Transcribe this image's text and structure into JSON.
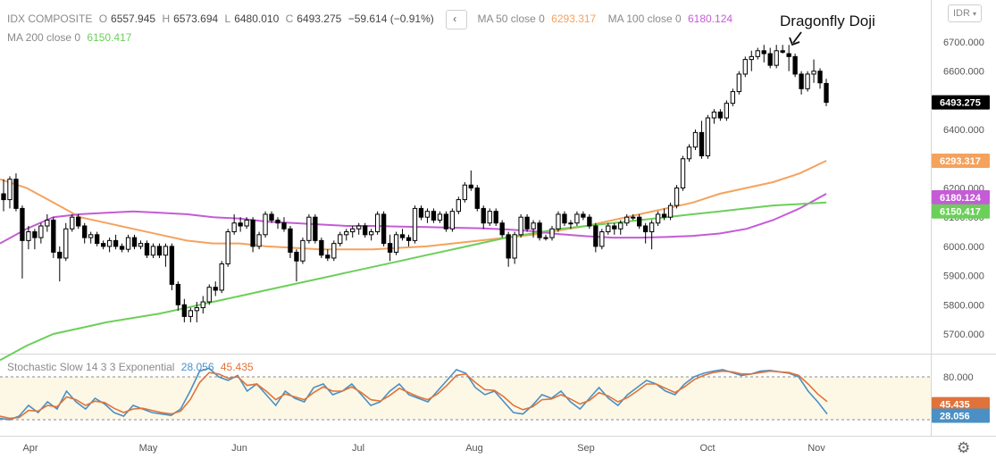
{
  "symbol": "IDX COMPOSITE",
  "ohlc": {
    "open_label": "O",
    "open": "6557.945",
    "high_label": "H",
    "high": "6573.694",
    "low_label": "L",
    "low": "6480.010",
    "close_label": "C",
    "close": "6493.275",
    "change": "−59.614 (−0.91%)"
  },
  "collapse_icon": "‹",
  "currency": "IDR",
  "currency_icon": "chevron-down-icon",
  "settings_icon": "⚙",
  "annotation": {
    "text": "Dragonfly Doji",
    "arrow_icon": "arrow-down-left-icon"
  },
  "moving_averages": [
    {
      "label": "MA 50 close 0",
      "value": "6293.317",
      "color": "#f5a25d"
    },
    {
      "label": "MA 100 close 0",
      "value": "6180.124",
      "color": "#c45cd6"
    },
    {
      "label": "MA 200 close 0",
      "value": "6150.417",
      "color": "#6ccf5a"
    }
  ],
  "stochastic": {
    "label": "Stochastic Slow 14 3 3 Exponential",
    "k": "28.056",
    "d": "45.435",
    "k_color": "#4a90c4",
    "d_color": "#e0733a",
    "band_upper": "80.000",
    "band_lower": "20.000"
  },
  "last_price_badge": {
    "value": "6493.275",
    "color": "#000000"
  },
  "chart_data": {
    "type": "candlestick",
    "y_axis_ticks": [
      "5700.000",
      "5800.000",
      "5900.000",
      "6000.000",
      "6100.000",
      "6200.000",
      "6300.000",
      "6400.000",
      "6500.000",
      "6600.000",
      "6700.000"
    ],
    "ylim": [
      5650,
      6760
    ],
    "x_axis_ticks": [
      "Apr",
      "May",
      "Jun",
      "Jul",
      "Aug",
      "Sep",
      "Oct",
      "Nov"
    ],
    "x_dates": [
      "2019-04-01",
      "2019-05-01",
      "2019-06-01",
      "2019-07-01",
      "2019-08-01",
      "2019-09-01",
      "2019-10-01",
      "2019-11-01"
    ],
    "candles": [
      [
        6180,
        6230,
        6120,
        6160
      ],
      [
        6160,
        6240,
        6130,
        6230
      ],
      [
        6230,
        6250,
        6120,
        6130
      ],
      [
        6130,
        6140,
        5890,
        6020
      ],
      [
        6020,
        6070,
        5990,
        6050
      ],
      [
        6050,
        6060,
        5990,
        6030
      ],
      [
        6030,
        6080,
        6010,
        6070
      ],
      [
        6070,
        6110,
        6050,
        6090
      ],
      [
        6090,
        6100,
        5960,
        5980
      ],
      [
        5980,
        6000,
        5880,
        5960
      ],
      [
        5960,
        6080,
        5950,
        6060
      ],
      [
        6060,
        6110,
        6050,
        6100
      ],
      [
        6100,
        6110,
        6060,
        6070
      ],
      [
        6070,
        6080,
        6010,
        6030
      ],
      [
        6030,
        6050,
        6010,
        6040
      ],
      [
        6040,
        6050,
        6000,
        6010
      ],
      [
        6010,
        6020,
        5990,
        6000
      ],
      [
        6000,
        6030,
        5980,
        6020
      ],
      [
        6020,
        6040,
        5990,
        6000
      ],
      [
        6000,
        6010,
        5980,
        5990
      ],
      [
        5990,
        6040,
        5980,
        6030
      ],
      [
        6030,
        6040,
        5990,
        6000
      ],
      [
        6000,
        6020,
        5990,
        6010
      ],
      [
        6010,
        6020,
        5960,
        5970
      ],
      [
        5970,
        6010,
        5960,
        6000
      ],
      [
        6000,
        6010,
        5960,
        5970
      ],
      [
        5970,
        6010,
        5930,
        6000
      ],
      [
        6000,
        6010,
        5850,
        5870
      ],
      [
        5870,
        5880,
        5780,
        5800
      ],
      [
        5800,
        5820,
        5740,
        5760
      ],
      [
        5760,
        5790,
        5740,
        5780
      ],
      [
        5780,
        5810,
        5740,
        5790
      ],
      [
        5790,
        5830,
        5770,
        5810
      ],
      [
        5810,
        5870,
        5800,
        5860
      ],
      [
        5860,
        5880,
        5830,
        5850
      ],
      [
        5850,
        5950,
        5840,
        5940
      ],
      [
        5940,
        6060,
        5930,
        6050
      ],
      [
        6050,
        6110,
        6040,
        6080
      ],
      [
        6080,
        6100,
        6050,
        6070
      ],
      [
        6070,
        6100,
        6060,
        6090
      ],
      [
        6090,
        6100,
        5980,
        6000
      ],
      [
        6000,
        6050,
        5990,
        6040
      ],
      [
        6040,
        6120,
        6030,
        6110
      ],
      [
        6110,
        6120,
        6080,
        6090
      ],
      [
        6090,
        6100,
        6060,
        6080
      ],
      [
        6080,
        6100,
        6050,
        6060
      ],
      [
        6060,
        6070,
        5960,
        5980
      ],
      [
        5980,
        5990,
        5880,
        5950
      ],
      [
        5950,
        6030,
        5940,
        6020
      ],
      [
        6020,
        6110,
        6010,
        6100
      ],
      [
        6100,
        6110,
        6010,
        6020
      ],
      [
        6020,
        6030,
        5960,
        5970
      ],
      [
        5970,
        5990,
        5950,
        5960
      ],
      [
        5960,
        6020,
        5950,
        6010
      ],
      [
        6010,
        6050,
        6000,
        6040
      ],
      [
        6040,
        6060,
        6020,
        6050
      ],
      [
        6050,
        6070,
        6030,
        6060
      ],
      [
        6060,
        6080,
        6040,
        6070
      ],
      [
        6070,
        6080,
        6030,
        6040
      ],
      [
        6040,
        6060,
        6020,
        6050
      ],
      [
        6050,
        6120,
        6040,
        6110
      ],
      [
        6110,
        6120,
        6000,
        6010
      ],
      [
        6010,
        6040,
        5950,
        5980
      ],
      [
        5980,
        6050,
        5970,
        6040
      ],
      [
        6040,
        6060,
        6020,
        6030
      ],
      [
        6030,
        6040,
        6000,
        6020
      ],
      [
        6020,
        6140,
        6010,
        6130
      ],
      [
        6130,
        6140,
        6090,
        6100
      ],
      [
        6100,
        6130,
        6080,
        6120
      ],
      [
        6120,
        6130,
        6080,
        6090
      ],
      [
        6090,
        6120,
        6080,
        6110
      ],
      [
        6110,
        6120,
        6050,
        6060
      ],
      [
        6060,
        6130,
        6050,
        6120
      ],
      [
        6120,
        6170,
        6110,
        6160
      ],
      [
        6160,
        6220,
        6150,
        6210
      ],
      [
        6210,
        6260,
        6190,
        6200
      ],
      [
        6200,
        6210,
        6120,
        6130
      ],
      [
        6130,
        6140,
        6060,
        6080
      ],
      [
        6080,
        6130,
        6070,
        6120
      ],
      [
        6120,
        6130,
        6070,
        6080
      ],
      [
        6080,
        6090,
        6030,
        6040
      ],
      [
        6040,
        6050,
        5930,
        5960
      ],
      [
        5960,
        6050,
        5940,
        6040
      ],
      [
        6040,
        6110,
        6030,
        6100
      ],
      [
        6100,
        6110,
        6050,
        6060
      ],
      [
        6060,
        6090,
        6030,
        6080
      ],
      [
        6080,
        6090,
        6020,
        6030
      ],
      [
        6030,
        6040,
        6020,
        6030
      ],
      [
        6030,
        6070,
        6020,
        6060
      ],
      [
        6060,
        6120,
        6050,
        6110
      ],
      [
        6110,
        6120,
        6070,
        6080
      ],
      [
        6080,
        6090,
        6060,
        6080
      ],
      [
        6080,
        6120,
        6070,
        6110
      ],
      [
        6110,
        6120,
        6090,
        6100
      ],
      [
        6100,
        6110,
        6060,
        6070
      ],
      [
        6070,
        6080,
        5980,
        6000
      ],
      [
        6000,
        6060,
        5990,
        6050
      ],
      [
        6050,
        6080,
        6040,
        6070
      ],
      [
        6070,
        6080,
        6040,
        6060
      ],
      [
        6060,
        6090,
        6040,
        6080
      ],
      [
        6080,
        6110,
        6070,
        6100
      ],
      [
        6100,
        6110,
        6090,
        6100
      ],
      [
        6100,
        6110,
        6060,
        6070
      ],
      [
        6070,
        6080,
        6010,
        6050
      ],
      [
        6050,
        6090,
        5990,
        6080
      ],
      [
        6080,
        6120,
        6070,
        6110
      ],
      [
        6110,
        6130,
        6090,
        6100
      ],
      [
        6100,
        6150,
        6090,
        6140
      ],
      [
        6140,
        6210,
        6130,
        6200
      ],
      [
        6200,
        6310,
        6190,
        6300
      ],
      [
        6300,
        6350,
        6290,
        6340
      ],
      [
        6340,
        6400,
        6330,
        6390
      ],
      [
        6390,
        6430,
        6300,
        6310
      ],
      [
        6310,
        6450,
        6300,
        6440
      ],
      [
        6440,
        6470,
        6420,
        6460
      ],
      [
        6460,
        6470,
        6430,
        6440
      ],
      [
        6440,
        6500,
        6430,
        6490
      ],
      [
        6490,
        6540,
        6480,
        6530
      ],
      [
        6530,
        6600,
        6520,
        6590
      ],
      [
        6590,
        6650,
        6580,
        6640
      ],
      [
        6640,
        6670,
        6600,
        6650
      ],
      [
        6650,
        6680,
        6640,
        6670
      ],
      [
        6670,
        6690,
        6630,
        6660
      ],
      [
        6660,
        6680,
        6610,
        6620
      ],
      [
        6620,
        6690,
        6610,
        6670
      ],
      [
        6670,
        6690,
        6660,
        6665
      ],
      [
        6660,
        6690,
        6600,
        6650
      ],
      [
        6650,
        6660,
        6580,
        6590
      ],
      [
        6590,
        6600,
        6520,
        6540
      ],
      [
        6540,
        6600,
        6530,
        6590
      ],
      [
        6590,
        6640,
        6560,
        6600
      ],
      [
        6600,
        6610,
        6540,
        6560
      ],
      [
        6557.945,
        6573.694,
        6480.01,
        6493.275
      ]
    ],
    "ma_series": [
      {
        "name": "MA 50 close 0",
        "values": [
          6230,
          6200,
          6150,
          6100,
          6080,
          6060,
          6040,
          6020,
          6010,
          6010,
          6000,
          5995,
          5990,
          5990,
          5990,
          5995,
          6000,
          6010,
          6020,
          6030,
          6040,
          6055,
          6070,
          6090,
          6110,
          6130,
          6150,
          6180,
          6200,
          6220,
          6250,
          6293.317
        ]
      },
      {
        "name": "MA 100 close 0",
        "values": [
          6010,
          6060,
          6100,
          6110,
          6115,
          6120,
          6115,
          6110,
          6100,
          6095,
          6085,
          6080,
          6075,
          6070,
          6070,
          6068,
          6066,
          6064,
          6062,
          6058,
          6052,
          6042,
          6035,
          6030,
          6030,
          6032,
          6036,
          6044,
          6060,
          6090,
          6130,
          6180.124
        ]
      },
      {
        "name": "MA 200 close 0",
        "values": [
          5610,
          5660,
          5700,
          5720,
          5740,
          5755,
          5770,
          5790,
          5810,
          5830,
          5850,
          5870,
          5890,
          5910,
          5930,
          5950,
          5970,
          5990,
          6010,
          6030,
          6045,
          6060,
          6070,
          6080,
          6090,
          6100,
          6110,
          6120,
          6130,
          6140,
          6145,
          6150.417
        ]
      }
    ],
    "stochastic_series": [
      {
        "name": "K",
        "values": [
          22,
          20,
          25,
          40,
          30,
          45,
          35,
          60,
          45,
          35,
          50,
          42,
          30,
          25,
          40,
          35,
          30,
          28,
          26,
          35,
          60,
          88,
          92,
          80,
          75,
          82,
          60,
          70,
          55,
          40,
          60,
          50,
          45,
          65,
          70,
          55,
          60,
          70,
          55,
          40,
          45,
          60,
          70,
          55,
          50,
          45,
          60,
          75,
          90,
          85,
          65,
          55,
          60,
          45,
          30,
          28,
          40,
          55,
          50,
          60,
          45,
          35,
          50,
          65,
          50,
          40,
          55,
          65,
          75,
          70,
          60,
          55,
          70,
          80,
          85,
          88,
          90,
          86,
          82,
          84,
          88,
          89,
          87,
          85,
          80,
          60,
          45,
          28.056
        ]
      },
      {
        "name": "D",
        "values": [
          25,
          22,
          23,
          33,
          32,
          40,
          38,
          52,
          48,
          40,
          46,
          44,
          36,
          30,
          35,
          36,
          33,
          30,
          28,
          32,
          48,
          72,
          86,
          84,
          78,
          80,
          68,
          70,
          60,
          48,
          56,
          52,
          48,
          58,
          66,
          60,
          60,
          66,
          58,
          48,
          46,
          54,
          64,
          58,
          52,
          48,
          56,
          68,
          82,
          84,
          72,
          62,
          61,
          52,
          40,
          34,
          38,
          48,
          49,
          55,
          49,
          42,
          47,
          58,
          53,
          45,
          51,
          60,
          70,
          70,
          64,
          58,
          66,
          76,
          82,
          86,
          88,
          87,
          84,
          84,
          86,
          88,
          87,
          86,
          82,
          70,
          56,
          45.435
        ]
      }
    ]
  },
  "date_labels": [
    "Apr",
    "May",
    "Jun",
    "Jul",
    "Aug",
    "Sep",
    "Oct",
    "Nov"
  ]
}
